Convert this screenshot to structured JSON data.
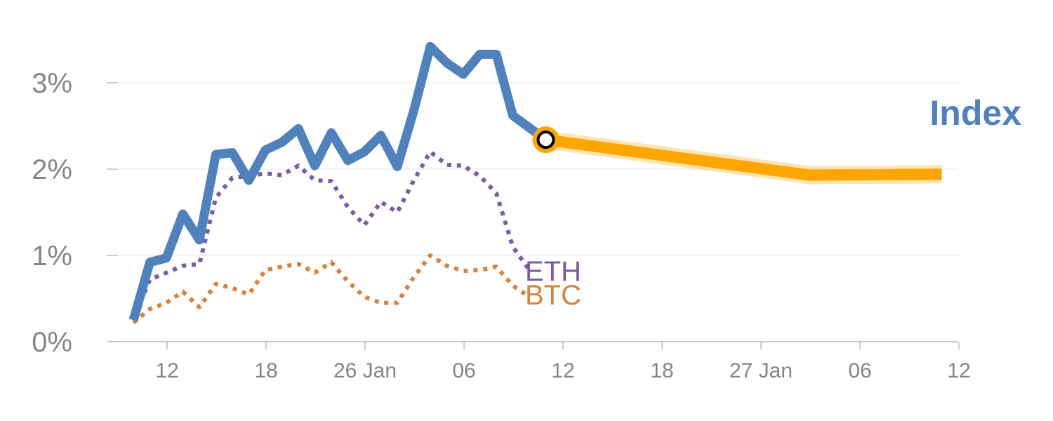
{
  "chart_data": {
    "type": "line",
    "y_ticks": [
      "0%",
      "1%",
      "2%",
      "3%"
    ],
    "ylim": [
      0,
      3.9
    ],
    "x_tick_labels": [
      "12",
      "18",
      "26 Jan",
      "06",
      "12",
      "18",
      "27 Jan",
      "06",
      "12"
    ],
    "grid": true,
    "colors": {
      "index": "#4f81bd",
      "eth": "#7b5aa6",
      "btc": "#d9823b",
      "projection": "#ffa500",
      "marker_stroke": "#000000"
    },
    "series": [
      {
        "key": "index",
        "name": "Index",
        "style": "solid",
        "x": [
          0,
          1,
          2,
          3,
          4,
          5,
          6,
          7,
          8,
          9,
          10,
          11,
          12,
          13,
          14,
          15,
          16,
          17,
          18,
          19,
          20,
          21,
          22,
          23,
          24,
          25
        ],
        "y": [
          0.25,
          0.92,
          0.97,
          1.48,
          1.18,
          2.17,
          2.19,
          1.87,
          2.22,
          2.31,
          2.47,
          2.04,
          2.42,
          2.1,
          2.2,
          2.39,
          2.03,
          2.68,
          3.42,
          3.23,
          3.1,
          3.33,
          3.33,
          2.62,
          2.48,
          2.34
        ]
      },
      {
        "key": "eth",
        "name": "ETH",
        "style": "dotted",
        "x": [
          0,
          1,
          2,
          3,
          4,
          5,
          6,
          7,
          8,
          9,
          10,
          11,
          12,
          13,
          14,
          15,
          16,
          17,
          18,
          19,
          20,
          21,
          22,
          23,
          24
        ],
        "y": [
          0.25,
          0.72,
          0.8,
          0.88,
          0.9,
          1.67,
          1.9,
          1.92,
          1.95,
          1.93,
          2.04,
          1.87,
          1.86,
          1.56,
          1.35,
          1.62,
          1.5,
          1.87,
          2.2,
          2.05,
          2.04,
          1.92,
          1.72,
          1.1,
          0.83
        ]
      },
      {
        "key": "btc",
        "name": "BTC",
        "style": "dotted",
        "x": [
          0,
          1,
          2,
          3,
          4,
          5,
          6,
          7,
          8,
          9,
          10,
          11,
          12,
          13,
          14,
          15,
          16,
          17,
          18,
          19,
          20,
          21,
          22,
          23,
          24
        ],
        "y": [
          0.22,
          0.38,
          0.45,
          0.58,
          0.4,
          0.67,
          0.62,
          0.55,
          0.83,
          0.87,
          0.9,
          0.8,
          0.92,
          0.7,
          0.52,
          0.45,
          0.45,
          0.75,
          1.0,
          0.88,
          0.82,
          0.83,
          0.87,
          0.65,
          0.52
        ]
      },
      {
        "key": "projection",
        "style": "thick",
        "x": [
          25,
          41,
          49
        ],
        "y": [
          2.34,
          1.93,
          1.94
        ]
      }
    ],
    "marker": {
      "x": 25,
      "y": 2.34
    }
  }
}
